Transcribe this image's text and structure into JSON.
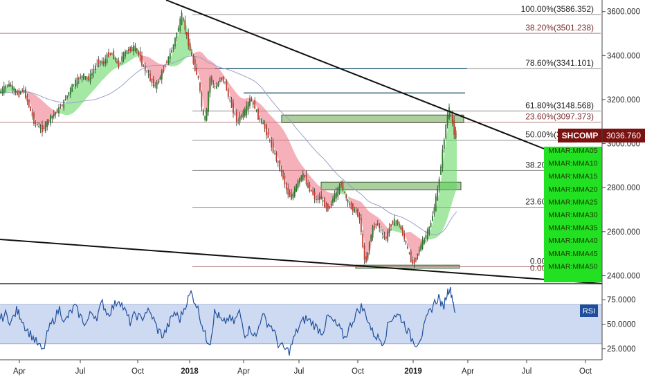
{
  "chart_data": {
    "type": "line",
    "symbol": "SHCOMP",
    "last_price": "3036.760",
    "price_axis": {
      "ylim": [
        2370,
        3640
      ],
      "ticks": [
        "3600.000",
        "3400.000",
        "3200.000",
        "3000.000",
        "2800.000",
        "2600.000",
        "2400.000"
      ],
      "tick_values": [
        3600,
        3400,
        3200,
        3000,
        2800,
        2600,
        2400
      ]
    },
    "time_axis": {
      "labels": [
        "Apr",
        "Jul",
        "Oct",
        "2018",
        "Apr",
        "Jul",
        "Oct",
        "2019",
        "Apr",
        "Jul",
        "Oct"
      ],
      "bold": [
        false,
        false,
        false,
        true,
        false,
        false,
        false,
        true,
        false,
        false,
        false
      ]
    },
    "fib_levels": [
      {
        "label": "100.00%(3586.352)",
        "value": 3586.352,
        "color": "#222222"
      },
      {
        "label": "38.20%(3501.238)",
        "value": 3501.238,
        "color": "#7a2e2e"
      },
      {
        "label": "78.60%(3341.101)",
        "value": 3341.101,
        "color": "#222222"
      },
      {
        "label": "61.80%(3148.568)",
        "value": 3148.568,
        "color": "#222222"
      },
      {
        "label": "23.60%(3097.373)",
        "value": 3097.373,
        "color": "#7a2e2e"
      },
      {
        "label": "50.00%(3015.724)",
        "value": 3015.724,
        "color": "#222222"
      },
      {
        "label": "38.20%(2878.180)",
        "value": 2878.18,
        "color": "#222222"
      },
      {
        "label": "23.60%(2710.704)",
        "value": 2710.704,
        "color": "#222222"
      },
      {
        "label": "0.00%(2440.920)",
        "value": 2440.92,
        "color": "#222222"
      },
      {
        "label": "0.00%(2440.920)",
        "value": 2440.92,
        "color": "#7a2e2e"
      }
    ],
    "horizontal_lines": [
      3341.101,
      3230
    ],
    "zones": [
      {
        "from": 3130,
        "to": 3095
      },
      {
        "from": 2825,
        "to": 2790
      },
      {
        "from": 2448,
        "to": 2434
      }
    ],
    "indicator_labels": [
      "MMAR:MMA05",
      "MMAR:MMA10",
      "MMAR:MMA15",
      "MMAR:MMA20",
      "MMAR:MMA25",
      "MMAR:MMA30",
      "MMAR:MMA35",
      "MMAR:MMA40",
      "MMAR:MMA45",
      "MMAR:MMA50"
    ],
    "price_series": {
      "t": [
        0,
        6,
        12,
        18,
        22,
        28,
        34,
        40,
        45,
        50,
        56,
        62,
        68,
        72,
        78,
        84,
        90,
        95,
        100,
        105,
        110,
        116,
        122,
        128,
        134,
        140,
        145,
        150,
        156,
        162,
        168,
        172,
        178,
        184,
        190,
        196,
        202,
        208,
        214,
        220,
        226,
        232,
        236,
        240,
        246,
        252,
        258,
        264,
        270,
        276,
        282,
        288,
        292,
        296,
        300,
        304,
        308,
        312,
        316,
        320,
        326,
        332,
        338,
        344,
        350,
        356,
        362,
        368,
        374,
        380,
        386,
        392,
        398,
        404,
        410,
        416,
        422,
        428,
        434,
        440,
        446,
        452,
        458,
        464,
        470,
        476,
        482,
        488,
        494,
        500,
        506,
        512,
        518,
        522,
        526,
        530,
        534,
        540,
        546,
        552,
        558,
        564,
        570,
        576,
        582,
        588,
        594,
        598,
        604,
        610,
        616,
        622,
        628,
        634,
        638,
        642,
        646,
        650,
        654,
        656,
        660
      ],
      "v": [
        3230,
        3250,
        3270,
        3260,
        3240,
        3220,
        3250,
        3200,
        3150,
        3100,
        3080,
        3060,
        3090,
        3110,
        3130,
        3150,
        3170,
        3200,
        3230,
        3260,
        3280,
        3300,
        3310,
        3290,
        3320,
        3360,
        3380,
        3360,
        3400,
        3410,
        3380,
        3350,
        3400,
        3420,
        3430,
        3440,
        3400,
        3350,
        3320,
        3280,
        3260,
        3300,
        3330,
        3360,
        3400,
        3450,
        3520,
        3586,
        3500,
        3420,
        3350,
        3290,
        3180,
        3100,
        3150,
        3300,
        3280,
        3250,
        3270,
        3300,
        3280,
        3200,
        3150,
        3100,
        3130,
        3150,
        3200,
        3180,
        3120,
        3100,
        3050,
        3000,
        2950,
        2900,
        2850,
        2780,
        2750,
        2800,
        2840,
        2860,
        2800,
        2780,
        2740,
        2760,
        2720,
        2700,
        2750,
        2780,
        2820,
        2760,
        2720,
        2700,
        2680,
        2640,
        2500,
        2460,
        2540,
        2620,
        2640,
        2600,
        2560,
        2620,
        2650,
        2640,
        2600,
        2540,
        2480,
        2450,
        2500,
        2540,
        2580,
        2620,
        2700,
        2800,
        2900,
        3000,
        3100,
        3160,
        3120,
        3060,
        3030
      ]
    },
    "rsi": {
      "label": "RSI",
      "ticks": [
        "75.0000",
        "50.0000",
        "25.0000"
      ],
      "tick_values": [
        75,
        50,
        25
      ],
      "band": [
        30,
        70
      ],
      "ylim": [
        15,
        90
      ],
      "t": [
        0,
        8,
        16,
        24,
        30,
        38,
        46,
        54,
        62,
        70,
        78,
        86,
        94,
        100,
        108,
        116,
        124,
        132,
        140,
        148,
        156,
        164,
        172,
        180,
        188,
        196,
        204,
        212,
        220,
        228,
        236,
        244,
        252,
        260,
        268,
        276,
        284,
        292,
        298,
        304,
        310,
        316,
        322,
        330,
        338,
        346,
        354,
        362,
        370,
        378,
        386,
        394,
        402,
        410,
        418,
        426,
        434,
        442,
        450,
        458,
        466,
        474,
        482,
        490,
        498,
        506,
        514,
        522,
        530,
        538,
        546,
        554,
        562,
        570,
        578,
        586,
        594,
        602,
        610,
        618,
        626,
        634,
        640,
        646,
        650,
        654,
        658
      ],
      "v": [
        55,
        60,
        52,
        64,
        58,
        45,
        38,
        30,
        22,
        44,
        55,
        66,
        52,
        60,
        68,
        58,
        50,
        62,
        58,
        72,
        60,
        68,
        76,
        64,
        52,
        60,
        55,
        64,
        58,
        44,
        38,
        50,
        62,
        55,
        70,
        82,
        70,
        50,
        35,
        32,
        62,
        58,
        50,
        56,
        52,
        62,
        40,
        46,
        36,
        60,
        52,
        46,
        30,
        25,
        22,
        38,
        50,
        56,
        52,
        46,
        42,
        58,
        52,
        46,
        36,
        48,
        60,
        68,
        58,
        42,
        36,
        32,
        52,
        60,
        58,
        48,
        36,
        30,
        40,
        58,
        70,
        78,
        66,
        82,
        88,
        76,
        62
      ]
    }
  }
}
